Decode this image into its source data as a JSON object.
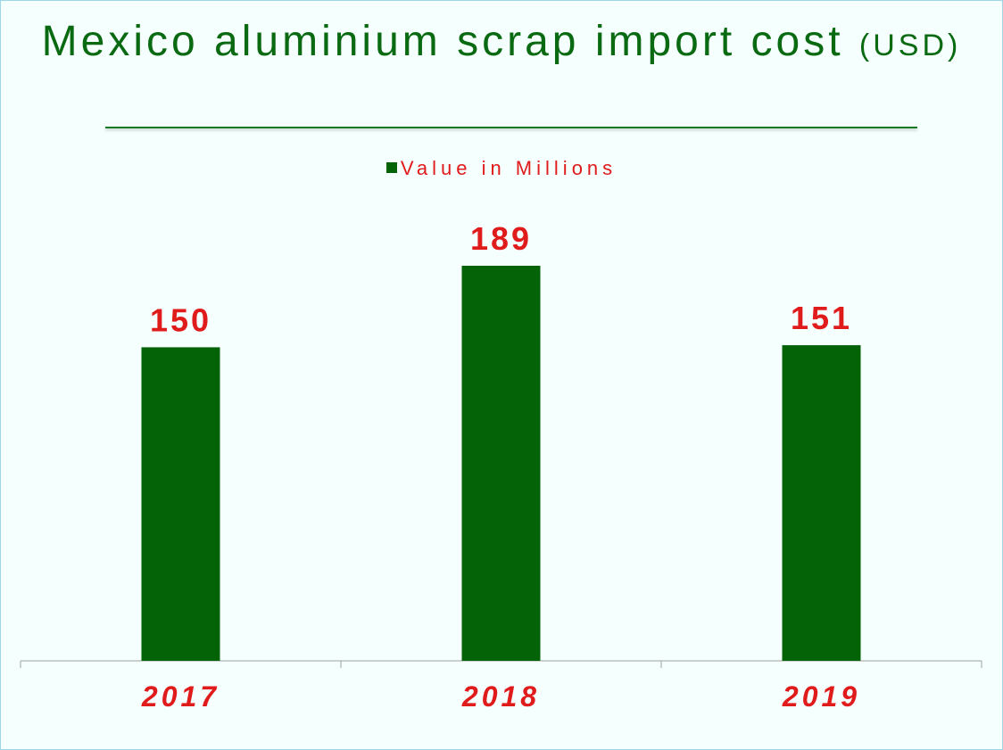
{
  "chart_data": {
    "type": "bar",
    "title": "Mexico aluminium scrap import cost",
    "title_unit": "(USD)",
    "categories": [
      "2017",
      "2018",
      "2019"
    ],
    "series": [
      {
        "name": "Value in Millions",
        "values": [
          150,
          189,
          151
        ]
      }
    ],
    "ylim": [
      0,
      189
    ],
    "grid": false,
    "legend_position": "top-center",
    "colors": {
      "bar": "#046307",
      "labels": "#e01b1b",
      "title": "#0a6a12",
      "axis": "#a0a0a0"
    }
  }
}
